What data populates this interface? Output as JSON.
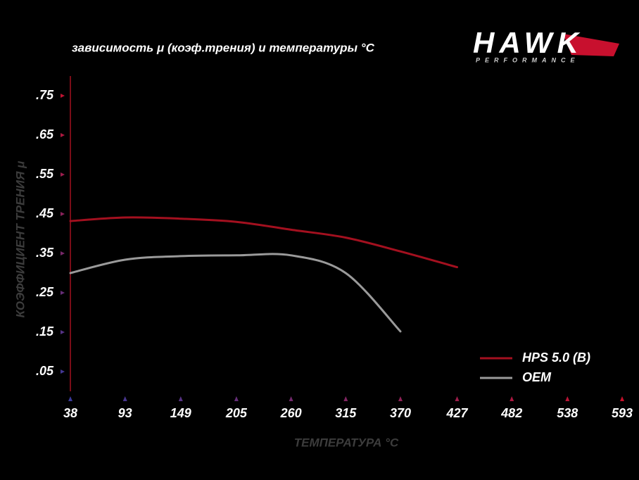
{
  "chart_data": {
    "type": "line",
    "title": "зависимость μ (коэф.трения) и температуры °С",
    "ylabel": "КОЭФФИЦИЕНТ ТРЕНИЯ μ",
    "xlabel": "ТЕМПЕРАТУРА °С",
    "x": [
      38,
      93,
      149,
      205,
      260,
      315,
      370,
      427
    ],
    "series": [
      {
        "name": "HPS 5.0 (B)",
        "color": "#a3101f",
        "values": [
          0.432,
          0.441,
          0.438,
          0.43,
          0.41,
          0.39,
          0.355,
          0.315
        ]
      },
      {
        "name": "OEM",
        "color": "#9a9a9a",
        "values": [
          0.3,
          0.334,
          0.343,
          0.345,
          0.345,
          0.3,
          0.152,
          null
        ]
      }
    ],
    "xlim": [
      38,
      593
    ],
    "xticks": [
      38,
      93,
      149,
      205,
      260,
      315,
      370,
      427,
      482,
      538,
      593
    ],
    "ylim": [
      0,
      0.8
    ],
    "yticks": [
      {
        "value": 0.05,
        "label": ".05"
      },
      {
        "value": 0.15,
        "label": ".15"
      },
      {
        "value": 0.25,
        "label": ".25"
      },
      {
        "value": 0.35,
        "label": ".35"
      },
      {
        "value": 0.45,
        "label": ".45"
      },
      {
        "value": 0.55,
        "label": ".55"
      },
      {
        "value": 0.65,
        "label": ".65"
      },
      {
        "value": 0.75,
        "label": ".75"
      }
    ],
    "legend": "lower-right"
  },
  "logo": {
    "text": "HAWK",
    "subtext": "PERFORMANCE"
  }
}
